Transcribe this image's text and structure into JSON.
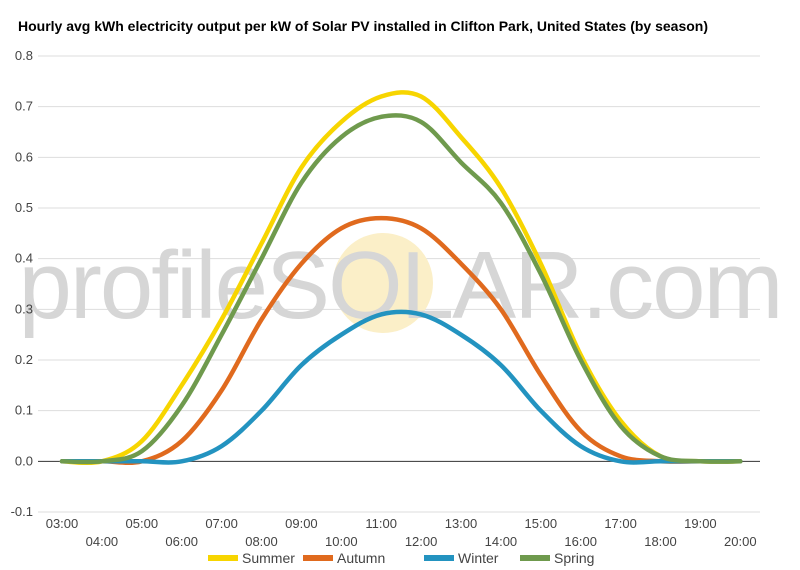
{
  "title": "Hourly avg kWh electricity output per kW of Solar PV installed in Clifton Park, United States (by season)",
  "watermark": "profileSOLAR.com",
  "chart_data": {
    "type": "line",
    "title": "Hourly avg kWh electricity output per kW of Solar PV installed in Clifton Park, United States (by season)",
    "xlabel": "",
    "ylabel": "",
    "ylim": [
      -0.1,
      0.8
    ],
    "yticks": [
      -0.1,
      0.0,
      0.1,
      0.2,
      0.3,
      0.4,
      0.5,
      0.6,
      0.7,
      0.8
    ],
    "ytick_labels": [
      "-0.1",
      "0.0",
      "0.1",
      "0.2",
      "0.3",
      "0.4",
      "0.5",
      "0.6",
      "0.7",
      "0.8"
    ],
    "x_hours": [
      3,
      4,
      5,
      6,
      7,
      8,
      9,
      10,
      11,
      12,
      13,
      14,
      15,
      16,
      17,
      18,
      19,
      20
    ],
    "categories": [
      "03:00",
      "04:00",
      "05:00",
      "06:00",
      "07:00",
      "08:00",
      "09:00",
      "10:00",
      "11:00",
      "12:00",
      "13:00",
      "14:00",
      "15:00",
      "16:00",
      "17:00",
      "18:00",
      "19:00",
      "20:00"
    ],
    "grid": true,
    "legend": "bottom",
    "series": [
      {
        "name": "Summer",
        "color": "#f7d500",
        "values": [
          0.0,
          0.0,
          0.04,
          0.15,
          0.28,
          0.43,
          0.58,
          0.67,
          0.72,
          0.72,
          0.64,
          0.54,
          0.39,
          0.21,
          0.08,
          0.01,
          0.0,
          0.0
        ]
      },
      {
        "name": "Autumn",
        "color": "#e06a1e",
        "values": [
          0.0,
          0.0,
          0.0,
          0.04,
          0.14,
          0.28,
          0.39,
          0.46,
          0.48,
          0.46,
          0.39,
          0.3,
          0.17,
          0.06,
          0.01,
          0.0,
          0.0,
          0.0
        ]
      },
      {
        "name": "Winter",
        "color": "#2393c0",
        "values": [
          0.0,
          0.0,
          0.0,
          0.0,
          0.03,
          0.1,
          0.19,
          0.25,
          0.29,
          0.29,
          0.25,
          0.19,
          0.1,
          0.03,
          0.0,
          0.0,
          0.0,
          0.0
        ]
      },
      {
        "name": "Spring",
        "color": "#6f9a4d",
        "values": [
          0.0,
          0.0,
          0.02,
          0.11,
          0.25,
          0.4,
          0.55,
          0.64,
          0.68,
          0.67,
          0.59,
          0.51,
          0.37,
          0.2,
          0.07,
          0.01,
          0.0,
          0.0
        ]
      }
    ]
  }
}
